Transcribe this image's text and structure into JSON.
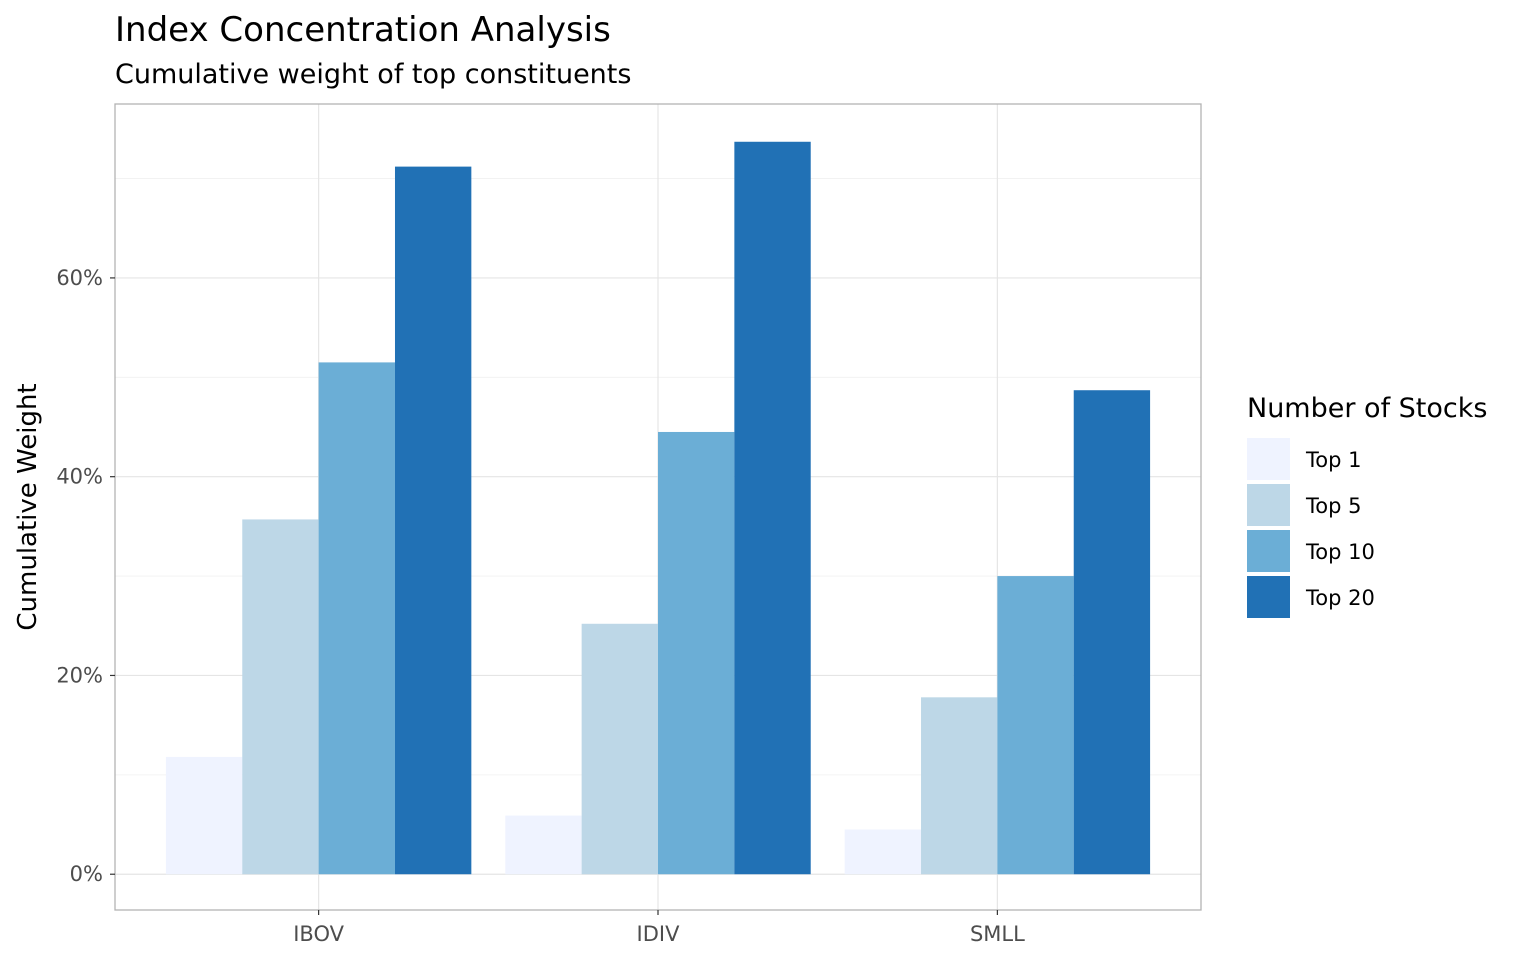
{
  "chart_data": {
    "type": "bar",
    "title": "Index Concentration Analysis",
    "subtitle": "Cumulative weight of top constituents",
    "xlabel": "",
    "ylabel": "Cumulative Weight",
    "ylim": [
      -0.036,
      0.775
    ],
    "y_ticks": [
      0,
      0.2,
      0.4,
      0.6
    ],
    "y_tick_labels": [
      "0%",
      "20%",
      "40%",
      "60%"
    ],
    "categories": [
      "IBOV",
      "IDIV",
      "SMLL"
    ],
    "legend_title": "Number of Stocks",
    "legend_position": "right",
    "grid": true,
    "series": [
      {
        "name": "Top 1",
        "color": "#eff3ff",
        "values": [
          0.118,
          0.059,
          0.045
        ]
      },
      {
        "name": "Top 5",
        "color": "#bdd7e7",
        "values": [
          0.357,
          0.252,
          0.178
        ]
      },
      {
        "name": "Top 10",
        "color": "#6baed6",
        "values": [
          0.515,
          0.445,
          0.3
        ]
      },
      {
        "name": "Top 20",
        "color": "#2171b5",
        "values": [
          0.712,
          0.737,
          0.487
        ]
      }
    ]
  }
}
